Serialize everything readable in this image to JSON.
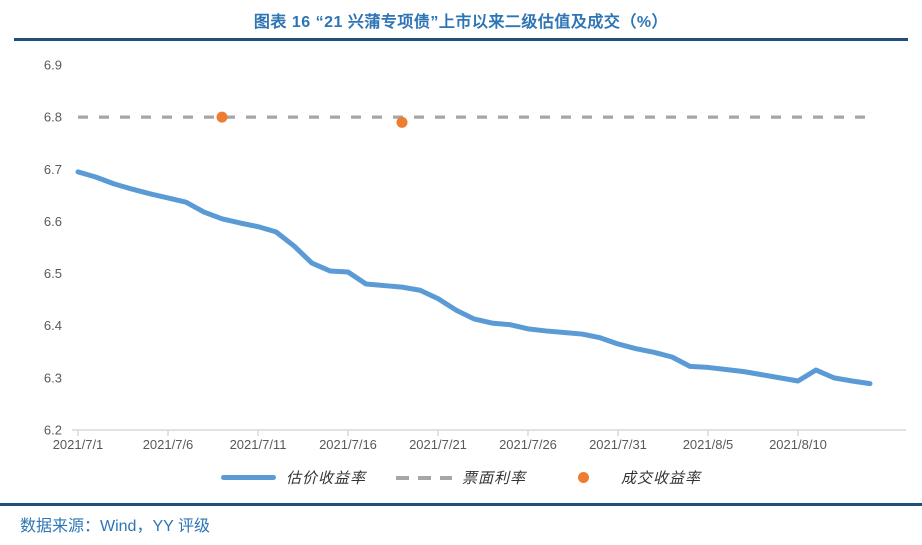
{
  "page": {
    "title": "图表 16 “21 兴蒲专项债”上市以来二级估值及成交（%）",
    "source": "数据来源：Wind，YY 评级",
    "title_color": "#2E75B6",
    "source_color": "#2E75B6",
    "rule_color": "#1F4E79"
  },
  "chart_data": {
    "type": "line",
    "title": "图表 16 “21 兴蒲专项债”上市以来二级估值及成交（%）",
    "xlabel": "",
    "ylabel": "",
    "ylim": [
      6.2,
      6.9
    ],
    "yticks": [
      "6.2",
      "6.3",
      "6.4",
      "6.5",
      "6.6",
      "6.7",
      "6.8",
      "6.9"
    ],
    "x_tick_labels": [
      "2021/7/1",
      "2021/7/6",
      "2021/7/11",
      "2021/7/16",
      "2021/7/21",
      "2021/7/26",
      "2021/7/31",
      "2021/8/5",
      "2021/8/10"
    ],
    "grid": false,
    "legend_position": "bottom",
    "axis_color": "#D9D9D9",
    "tick_label_color": "#595959",
    "x": [
      "2021/7/1",
      "2021/7/2",
      "2021/7/3",
      "2021/7/4",
      "2021/7/5",
      "2021/7/6",
      "2021/7/7",
      "2021/7/8",
      "2021/7/9",
      "2021/7/10",
      "2021/7/11",
      "2021/7/12",
      "2021/7/13",
      "2021/7/14",
      "2021/7/15",
      "2021/7/16",
      "2021/7/17",
      "2021/7/18",
      "2021/7/19",
      "2021/7/20",
      "2021/7/21",
      "2021/7/22",
      "2021/7/23",
      "2021/7/24",
      "2021/7/25",
      "2021/7/26",
      "2021/7/27",
      "2021/7/28",
      "2021/7/29",
      "2021/7/30",
      "2021/7/31",
      "2021/8/1",
      "2021/8/2",
      "2021/8/3",
      "2021/8/4",
      "2021/8/5",
      "2021/8/6",
      "2021/8/7",
      "2021/8/8",
      "2021/8/9",
      "2021/8/10",
      "2021/8/11",
      "2021/8/12",
      "2021/8/13",
      "2021/8/14"
    ],
    "series": [
      {
        "name": "估价收益率",
        "type": "line",
        "color": "#5B9BD5",
        "values": [
          6.695,
          6.685,
          6.672,
          6.662,
          6.653,
          6.645,
          6.637,
          6.618,
          6.605,
          6.597,
          6.59,
          6.58,
          6.553,
          6.52,
          6.505,
          6.503,
          6.48,
          6.477,
          6.474,
          6.468,
          6.452,
          6.43,
          6.413,
          6.405,
          6.402,
          6.394,
          6.39,
          6.387,
          6.384,
          6.377,
          6.365,
          6.356,
          6.349,
          6.34,
          6.322,
          6.32,
          6.316,
          6.312,
          6.306,
          6.3,
          6.294,
          6.315,
          6.3,
          6.294,
          6.289
        ]
      },
      {
        "name": "票面利率",
        "type": "dashed_line",
        "color": "#A6A6A6",
        "value": 6.8
      },
      {
        "name": "成交收益率",
        "type": "scatter",
        "color": "#ED7D31",
        "points": [
          {
            "x": "2021/7/9",
            "y": 6.8
          },
          {
            "x": "2021/7/19",
            "y": 6.79
          }
        ]
      }
    ]
  }
}
